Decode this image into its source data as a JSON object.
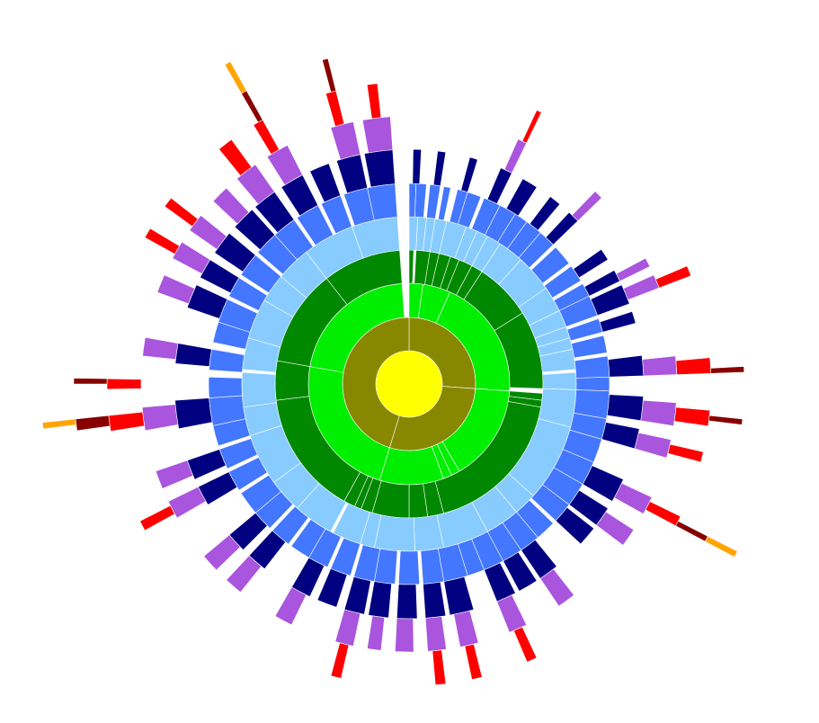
{
  "chart_data": {
    "type": "sunburst",
    "title": "",
    "legend": "none",
    "level_colors": [
      "#ffff00",
      "#888800",
      "#00ee00",
      "#008800",
      "#88ccff",
      "#4477ff",
      "#000080",
      "#aa55dd",
      "#ff0000",
      "#880000",
      "#ffa500"
    ],
    "total": 360,
    "levels": [
      {
        "depth": 0,
        "segments": [
          {
            "start": 0,
            "end": 360
          }
        ]
      },
      {
        "depth": 1,
        "segments": [
          {
            "start": 0,
            "end": 94
          },
          {
            "start": 94,
            "end": 197
          },
          {
            "start": 197,
            "end": 360
          }
        ]
      },
      {
        "depth": 2,
        "segments": [
          {
            "start": 0,
            "end": 8
          },
          {
            "start": 8,
            "end": 24
          },
          {
            "start": 24,
            "end": 94
          },
          {
            "start": 94,
            "end": 150
          },
          {
            "start": 150,
            "end": 155
          },
          {
            "start": 155,
            "end": 160
          },
          {
            "start": 160,
            "end": 197
          },
          {
            "start": 197,
            "end": 280
          },
          {
            "start": 280,
            "end": 356
          }
        ]
      },
      {
        "depth": 3,
        "segments": [
          {
            "start": 0,
            "end": 2
          },
          {
            "start": 3,
            "end": 9
          },
          {
            "start": 9,
            "end": 13
          },
          {
            "start": 13,
            "end": 18
          },
          {
            "start": 18,
            "end": 22
          },
          {
            "start": 22,
            "end": 28
          },
          {
            "start": 28,
            "end": 33
          },
          {
            "start": 33,
            "end": 58
          },
          {
            "start": 58,
            "end": 92
          },
          {
            "start": 94,
            "end": 97
          },
          {
            "start": 97,
            "end": 100
          },
          {
            "start": 100,
            "end": 165
          },
          {
            "start": 165,
            "end": 172
          },
          {
            "start": 172,
            "end": 180
          },
          {
            "start": 180,
            "end": 196
          },
          {
            "start": 196,
            "end": 201
          },
          {
            "start": 201,
            "end": 204
          },
          {
            "start": 204,
            "end": 209
          },
          {
            "start": 209,
            "end": 263
          },
          {
            "start": 263,
            "end": 280
          },
          {
            "start": 280,
            "end": 322
          },
          {
            "start": 322,
            "end": 356
          }
        ]
      },
      {
        "depth": 4,
        "segments": [
          {
            "start": 0,
            "end": 3
          },
          {
            "start": 3,
            "end": 6
          },
          {
            "start": 6,
            "end": 9
          },
          {
            "start": 9,
            "end": 13
          },
          {
            "start": 13,
            "end": 20
          },
          {
            "start": 20,
            "end": 24
          },
          {
            "start": 24,
            "end": 28
          },
          {
            "start": 28,
            "end": 33
          },
          {
            "start": 33,
            "end": 42
          },
          {
            "start": 42,
            "end": 55
          },
          {
            "start": 55,
            "end": 64
          },
          {
            "start": 64,
            "end": 70
          },
          {
            "start": 70,
            "end": 74
          },
          {
            "start": 74,
            "end": 78
          },
          {
            "start": 78,
            "end": 85
          },
          {
            "start": 86,
            "end": 92
          },
          {
            "start": 92,
            "end": 105
          },
          {
            "start": 105,
            "end": 132
          },
          {
            "start": 132,
            "end": 140
          },
          {
            "start": 140,
            "end": 152
          },
          {
            "start": 152,
            "end": 168
          },
          {
            "start": 168,
            "end": 178
          },
          {
            "start": 178,
            "end": 192
          },
          {
            "start": 192,
            "end": 197
          },
          {
            "start": 197,
            "end": 207
          },
          {
            "start": 208,
            "end": 222
          },
          {
            "start": 222,
            "end": 234
          },
          {
            "start": 234,
            "end": 252
          },
          {
            "start": 252,
            "end": 262
          },
          {
            "start": 262,
            "end": 274
          },
          {
            "start": 275,
            "end": 286
          },
          {
            "start": 286,
            "end": 300
          },
          {
            "start": 300,
            "end": 310
          },
          {
            "start": 310,
            "end": 322
          },
          {
            "start": 322,
            "end": 340
          },
          {
            "start": 340,
            "end": 356
          }
        ]
      },
      {
        "depth": 5,
        "segments": [
          {
            "start": 0,
            "end": 2
          },
          {
            "start": 2,
            "end": 5
          },
          {
            "start": 6,
            "end": 9
          },
          {
            "start": 10,
            "end": 12
          },
          {
            "start": 14,
            "end": 17
          },
          {
            "start": 17,
            "end": 21
          },
          {
            "start": 22,
            "end": 27
          },
          {
            "start": 27,
            "end": 32
          },
          {
            "start": 32,
            "end": 36
          },
          {
            "start": 36,
            "end": 41
          },
          {
            "start": 41,
            "end": 46
          },
          {
            "start": 47,
            "end": 53
          },
          {
            "start": 54,
            "end": 59
          },
          {
            "start": 60,
            "end": 64
          },
          {
            "start": 64,
            "end": 70
          },
          {
            "start": 71,
            "end": 75
          },
          {
            "start": 76,
            "end": 81
          },
          {
            "start": 82,
            "end": 88
          },
          {
            "start": 88,
            "end": 92
          },
          {
            "start": 92,
            "end": 100
          },
          {
            "start": 100,
            "end": 106
          },
          {
            "start": 106,
            "end": 113
          },
          {
            "start": 113,
            "end": 120
          },
          {
            "start": 120,
            "end": 127
          },
          {
            "start": 127,
            "end": 133
          },
          {
            "start": 134,
            "end": 140
          },
          {
            "start": 140,
            "end": 146
          },
          {
            "start": 146,
            "end": 152
          },
          {
            "start": 152,
            "end": 158
          },
          {
            "start": 158,
            "end": 163
          },
          {
            "start": 163,
            "end": 170
          },
          {
            "start": 170,
            "end": 176
          },
          {
            "start": 177,
            "end": 183
          },
          {
            "start": 184,
            "end": 190
          },
          {
            "start": 190,
            "end": 196
          },
          {
            "start": 197,
            "end": 203
          },
          {
            "start": 204,
            "end": 210
          },
          {
            "start": 210,
            "end": 216
          },
          {
            "start": 217,
            "end": 223
          },
          {
            "start": 224,
            "end": 230
          },
          {
            "start": 230,
            "end": 237
          },
          {
            "start": 238,
            "end": 244
          },
          {
            "start": 245,
            "end": 251
          },
          {
            "start": 252,
            "end": 258
          },
          {
            "start": 258,
            "end": 266
          },
          {
            "start": 266,
            "end": 272
          },
          {
            "start": 274,
            "end": 280
          },
          {
            "start": 282,
            "end": 288
          },
          {
            "start": 288,
            "end": 295
          },
          {
            "start": 296,
            "end": 302
          },
          {
            "start": 303,
            "end": 310
          },
          {
            "start": 311,
            "end": 318
          },
          {
            "start": 318,
            "end": 325
          },
          {
            "start": 326,
            "end": 333
          },
          {
            "start": 334,
            "end": 340
          },
          {
            "start": 341,
            "end": 348
          },
          {
            "start": 348,
            "end": 356
          }
        ]
      },
      {
        "depth": 6,
        "segments": [
          {
            "start": 1,
            "end": 3
          },
          {
            "start": 7,
            "end": 9
          },
          {
            "start": 15,
            "end": 17
          },
          {
            "start": 23,
            "end": 26
          },
          {
            "start": 29,
            "end": 33
          },
          {
            "start": 37,
            "end": 40
          },
          {
            "start": 43,
            "end": 46
          },
          {
            "start": 55,
            "end": 58
          },
          {
            "start": 61,
            "end": 64
          },
          {
            "start": 65,
            "end": 70
          },
          {
            "start": 72,
            "end": 75
          },
          {
            "start": 83,
            "end": 88
          },
          {
            "start": 93,
            "end": 99
          },
          {
            "start": 101,
            "end": 106
          },
          {
            "start": 114,
            "end": 120
          },
          {
            "start": 122,
            "end": 127
          },
          {
            "start": 128,
            "end": 133
          },
          {
            "start": 141,
            "end": 146
          },
          {
            "start": 147,
            "end": 152
          },
          {
            "start": 153,
            "end": 158
          },
          {
            "start": 164,
            "end": 170
          },
          {
            "start": 171,
            "end": 176
          },
          {
            "start": 178,
            "end": 183
          },
          {
            "start": 185,
            "end": 190
          },
          {
            "start": 191,
            "end": 196
          },
          {
            "start": 198,
            "end": 203
          },
          {
            "start": 205,
            "end": 210
          },
          {
            "start": 218,
            "end": 223
          },
          {
            "start": 225,
            "end": 230
          },
          {
            "start": 239,
            "end": 244
          },
          {
            "start": 246,
            "end": 251
          },
          {
            "start": 259,
            "end": 266
          },
          {
            "start": 275,
            "end": 280
          },
          {
            "start": 289,
            "end": 295
          },
          {
            "start": 297,
            "end": 302
          },
          {
            "start": 304,
            "end": 310
          },
          {
            "start": 312,
            "end": 318
          },
          {
            "start": 319,
            "end": 325
          },
          {
            "start": 327,
            "end": 333
          },
          {
            "start": 335,
            "end": 340
          },
          {
            "start": 342,
            "end": 348
          },
          {
            "start": 349,
            "end": 356
          }
        ]
      },
      {
        "depth": 7,
        "segments": [
          {
            "start": 24,
            "end": 26
          },
          {
            "start": 44,
            "end": 46
          },
          {
            "start": 62,
            "end": 64
          },
          {
            "start": 66,
            "end": 69
          },
          {
            "start": 84,
            "end": 88
          },
          {
            "start": 94,
            "end": 99
          },
          {
            "start": 102,
            "end": 106
          },
          {
            "start": 115,
            "end": 119
          },
          {
            "start": 123,
            "end": 127
          },
          {
            "start": 142,
            "end": 146
          },
          {
            "start": 154,
            "end": 158
          },
          {
            "start": 165,
            "end": 169
          },
          {
            "start": 172,
            "end": 176
          },
          {
            "start": 179,
            "end": 183
          },
          {
            "start": 186,
            "end": 189
          },
          {
            "start": 192,
            "end": 196
          },
          {
            "start": 206,
            "end": 210
          },
          {
            "start": 219,
            "end": 223
          },
          {
            "start": 226,
            "end": 230
          },
          {
            "start": 240,
            "end": 244
          },
          {
            "start": 247,
            "end": 251
          },
          {
            "start": 260,
            "end": 265
          },
          {
            "start": 276,
            "end": 280
          },
          {
            "start": 290,
            "end": 294
          },
          {
            "start": 298,
            "end": 302
          },
          {
            "start": 305,
            "end": 309
          },
          {
            "start": 313,
            "end": 317
          },
          {
            "start": 320,
            "end": 325
          },
          {
            "start": 328,
            "end": 333
          },
          {
            "start": 343,
            "end": 348
          },
          {
            "start": 350,
            "end": 356
          }
        ]
      },
      {
        "depth": 8,
        "segments": [
          {
            "start": 25,
            "end": 26
          },
          {
            "start": 67,
            "end": 69
          },
          {
            "start": 85,
            "end": 88
          },
          {
            "start": 95,
            "end": 98
          },
          {
            "start": 103,
            "end": 105
          },
          {
            "start": 116,
            "end": 118
          },
          {
            "start": 155,
            "end": 157
          },
          {
            "start": 166,
            "end": 168
          },
          {
            "start": 173,
            "end": 175
          },
          {
            "start": 193,
            "end": 195
          },
          {
            "start": 241,
            "end": 243
          },
          {
            "start": 261,
            "end": 264
          },
          {
            "start": 269,
            "end": 271
          },
          {
            "start": 299,
            "end": 301
          },
          {
            "start": 306,
            "end": 308
          },
          {
            "start": 321,
            "end": 324
          },
          {
            "start": 329,
            "end": 331
          },
          {
            "start": 344,
            "end": 346
          },
          {
            "start": 352,
            "end": 354
          }
        ]
      },
      {
        "depth": 9,
        "segments": [
          {
            "start": 87,
            "end": 88
          },
          {
            "start": 96,
            "end": 97
          },
          {
            "start": 117,
            "end": 118
          },
          {
            "start": 262,
            "end": 264
          },
          {
            "start": 270,
            "end": 271
          },
          {
            "start": 330,
            "end": 331
          },
          {
            "start": 345,
            "end": 346
          }
        ]
      },
      {
        "depth": 10,
        "segments": [
          {
            "start": 117,
            "end": 118
          },
          {
            "start": 263,
            "end": 264
          },
          {
            "start": 330,
            "end": 331
          }
        ]
      }
    ]
  }
}
